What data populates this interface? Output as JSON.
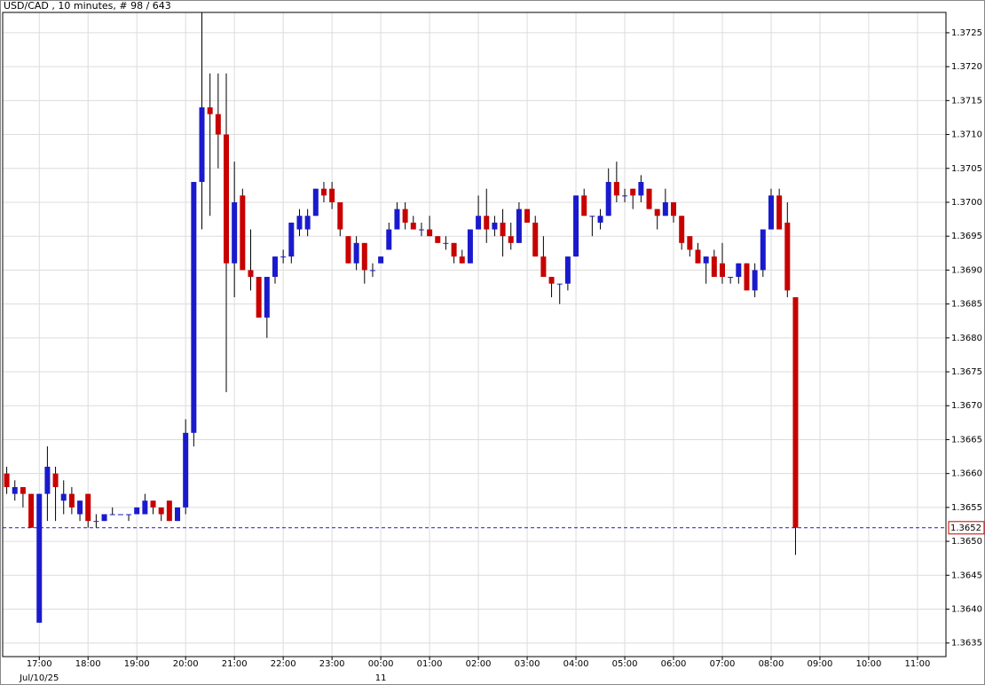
{
  "chart_data": {
    "type": "candlestick",
    "title": "USD/CAD , 10 minutes, # 98 / 643",
    "x": [
      "2025-07-10T16:20",
      "2025-07-10T16:30",
      "2025-07-10T16:40",
      "2025-07-10T16:50",
      "2025-07-10T17:00",
      "2025-07-10T17:10",
      "2025-07-10T17:20",
      "2025-07-10T17:30",
      "2025-07-10T17:40",
      "2025-07-10T17:50",
      "2025-07-10T18:00",
      "2025-07-10T18:10",
      "2025-07-10T18:20",
      "2025-07-10T18:30",
      "2025-07-10T18:40",
      "2025-07-10T18:50",
      "2025-07-10T19:00",
      "2025-07-10T19:10",
      "2025-07-10T19:20",
      "2025-07-10T19:30",
      "2025-07-10T19:40",
      "2025-07-10T19:50",
      "2025-07-10T20:00",
      "2025-07-10T20:10",
      "2025-07-10T20:20",
      "2025-07-10T20:30",
      "2025-07-10T20:40",
      "2025-07-10T20:50",
      "2025-07-10T21:00",
      "2025-07-10T21:10",
      "2025-07-10T21:20",
      "2025-07-10T21:30",
      "2025-07-10T21:40",
      "2025-07-10T21:50",
      "2025-07-10T22:00",
      "2025-07-10T22:10",
      "2025-07-10T22:20",
      "2025-07-10T22:30",
      "2025-07-10T22:40",
      "2025-07-10T22:50",
      "2025-07-10T23:00",
      "2025-07-10T23:10",
      "2025-07-10T23:20",
      "2025-07-10T23:30",
      "2025-07-10T23:40",
      "2025-07-10T23:50",
      "2025-07-11T00:00",
      "2025-07-11T00:10",
      "2025-07-11T00:20",
      "2025-07-11T00:30",
      "2025-07-11T00:40",
      "2025-07-11T00:50",
      "2025-07-11T01:00",
      "2025-07-11T01:10",
      "2025-07-11T01:20",
      "2025-07-11T01:30",
      "2025-07-11T01:40",
      "2025-07-11T01:50",
      "2025-07-11T02:00",
      "2025-07-11T02:10",
      "2025-07-11T02:20",
      "2025-07-11T02:30",
      "2025-07-11T02:40",
      "2025-07-11T02:50",
      "2025-07-11T03:00",
      "2025-07-11T03:10",
      "2025-07-11T03:20",
      "2025-07-11T03:30",
      "2025-07-11T03:40",
      "2025-07-11T03:50",
      "2025-07-11T04:00",
      "2025-07-11T04:10",
      "2025-07-11T04:20",
      "2025-07-11T04:30",
      "2025-07-11T04:40",
      "2025-07-11T04:50",
      "2025-07-11T05:00",
      "2025-07-11T05:10",
      "2025-07-11T05:20",
      "2025-07-11T05:30",
      "2025-07-11T05:40",
      "2025-07-11T05:50",
      "2025-07-11T06:00",
      "2025-07-11T06:10",
      "2025-07-11T06:20",
      "2025-07-11T06:30",
      "2025-07-11T06:40",
      "2025-07-11T06:50",
      "2025-07-11T07:00",
      "2025-07-11T07:10",
      "2025-07-11T07:20",
      "2025-07-11T07:30",
      "2025-07-11T07:40",
      "2025-07-11T07:50",
      "2025-07-11T08:00",
      "2025-07-11T08:10",
      "2025-07-11T08:20",
      "2025-07-11T08:30"
    ],
    "open": [
      1.366,
      1.3657,
      1.3658,
      1.3657,
      1.3638,
      1.3657,
      1.366,
      1.3656,
      1.3657,
      1.3654,
      1.3657,
      1.3653,
      1.3653,
      1.3654,
      1.3654,
      1.3654,
      1.3654,
      1.3654,
      1.3656,
      1.3655,
      1.3656,
      1.3653,
      1.3655,
      1.3666,
      1.3703,
      1.3714,
      1.3713,
      1.371,
      1.3691,
      1.3701,
      1.369,
      1.3689,
      1.3683,
      1.3689,
      1.3692,
      1.3692,
      1.3696,
      1.3696,
      1.3698,
      1.3702,
      1.3702,
      1.37,
      1.3695,
      1.3691,
      1.3694,
      1.369,
      1.3691,
      1.3693,
      1.3696,
      1.3699,
      1.3697,
      1.3696,
      1.3696,
      1.3695,
      1.3694,
      1.3694,
      1.3692,
      1.3691,
      1.3696,
      1.3698,
      1.3696,
      1.3697,
      1.3695,
      1.3694,
      1.3699,
      1.3697,
      1.3692,
      1.3689,
      1.3688,
      1.3688,
      1.3692,
      1.3701,
      1.3698,
      1.3697,
      1.3698,
      1.3703,
      1.3701,
      1.3702,
      1.3701,
      1.3702,
      1.3699,
      1.3698,
      1.37,
      1.3698,
      1.3695,
      1.3693,
      1.3691,
      1.3692,
      1.3691,
      1.3689,
      1.3689,
      1.3691,
      1.3687,
      1.369,
      1.3696,
      1.3701,
      1.3697,
      1.3686
    ],
    "high": [
      1.3661,
      1.3659,
      1.3658,
      1.3657,
      1.3657,
      1.3664,
      1.3661,
      1.3659,
      1.3658,
      1.3656,
      1.3657,
      1.3654,
      1.3654,
      1.3655,
      1.3654,
      1.3654,
      1.3655,
      1.3657,
      1.3656,
      1.3655,
      1.3656,
      1.3655,
      1.3668,
      1.3703,
      1.3728,
      1.3719,
      1.3719,
      1.3719,
      1.3706,
      1.3702,
      1.3696,
      1.3689,
      1.3689,
      1.3692,
      1.3693,
      1.3697,
      1.3699,
      1.3699,
      1.3702,
      1.3703,
      1.3703,
      1.37,
      1.3695,
      1.3695,
      1.3694,
      1.3691,
      1.3692,
      1.3697,
      1.37,
      1.37,
      1.3698,
      1.3697,
      1.3698,
      1.3695,
      1.3695,
      1.3694,
      1.3693,
      1.3696,
      1.3701,
      1.3702,
      1.3698,
      1.3699,
      1.3697,
      1.37,
      1.3699,
      1.3698,
      1.3695,
      1.3689,
      1.3688,
      1.3692,
      1.3701,
      1.3702,
      1.3698,
      1.3699,
      1.3705,
      1.3706,
      1.3702,
      1.3702,
      1.3704,
      1.3702,
      1.3699,
      1.3702,
      1.37,
      1.3698,
      1.3695,
      1.3694,
      1.3692,
      1.3693,
      1.3694,
      1.3689,
      1.3691,
      1.3691,
      1.3691,
      1.3696,
      1.3702,
      1.3702,
      1.37,
      1.3686
    ],
    "low": [
      1.3657,
      1.3656,
      1.3655,
      1.3652,
      1.3638,
      1.3653,
      1.3653,
      1.3654,
      1.3654,
      1.3653,
      1.3652,
      1.3652,
      1.3653,
      1.3654,
      1.3654,
      1.3653,
      1.3654,
      1.3654,
      1.3654,
      1.3653,
      1.3653,
      1.3653,
      1.3654,
      1.3664,
      1.3696,
      1.3698,
      1.3705,
      1.3672,
      1.3686,
      1.369,
      1.3687,
      1.3683,
      1.368,
      1.3688,
      1.3691,
      1.3691,
      1.3695,
      1.3695,
      1.3698,
      1.37,
      1.3699,
      1.3695,
      1.3691,
      1.369,
      1.3688,
      1.3689,
      1.3691,
      1.3693,
      1.3696,
      1.3696,
      1.3696,
      1.3695,
      1.3695,
      1.3694,
      1.3693,
      1.3691,
      1.3691,
      1.3691,
      1.3696,
      1.3694,
      1.3695,
      1.3692,
      1.3693,
      1.3694,
      1.3697,
      1.3692,
      1.3689,
      1.3686,
      1.3685,
      1.3687,
      1.3692,
      1.3698,
      1.3695,
      1.3696,
      1.3698,
      1.37,
      1.37,
      1.3699,
      1.37,
      1.3699,
      1.3696,
      1.3698,
      1.3697,
      1.3693,
      1.3692,
      1.3691,
      1.3688,
      1.3689,
      1.3688,
      1.3688,
      1.3688,
      1.3687,
      1.3686,
      1.3689,
      1.3696,
      1.3696,
      1.3686,
      1.3648
    ],
    "close": [
      1.3658,
      1.3658,
      1.3657,
      1.3652,
      1.3657,
      1.3661,
      1.3658,
      1.3657,
      1.3655,
      1.3656,
      1.3653,
      1.3653,
      1.3654,
      1.3654,
      1.3654,
      1.3654,
      1.3655,
      1.3656,
      1.3655,
      1.3654,
      1.3653,
      1.3655,
      1.3666,
      1.3703,
      1.3714,
      1.3713,
      1.371,
      1.3691,
      1.37,
      1.369,
      1.3689,
      1.3683,
      1.3689,
      1.3692,
      1.3692,
      1.3697,
      1.3698,
      1.3698,
      1.3702,
      1.3701,
      1.37,
      1.3696,
      1.3691,
      1.3694,
      1.369,
      1.369,
      1.3692,
      1.3696,
      1.3699,
      1.3697,
      1.3696,
      1.3696,
      1.3695,
      1.3694,
      1.3694,
      1.3692,
      1.3691,
      1.3696,
      1.3698,
      1.3696,
      1.3697,
      1.3695,
      1.3694,
      1.3699,
      1.3697,
      1.3692,
      1.3689,
      1.3688,
      1.3688,
      1.3692,
      1.3701,
      1.3698,
      1.3698,
      1.3698,
      1.3703,
      1.3701,
      1.3701,
      1.3701,
      1.3703,
      1.3699,
      1.3698,
      1.37,
      1.3698,
      1.3694,
      1.3693,
      1.3691,
      1.3692,
      1.3689,
      1.3689,
      1.3689,
      1.3691,
      1.3687,
      1.369,
      1.3696,
      1.3701,
      1.3696,
      1.3687,
      1.3652
    ],
    "up_color": "#1a1acd",
    "down_color": "#c80000",
    "xlim": [
      "2025-07-10T16:15",
      "2025-07-11T11:35"
    ],
    "xticks": [
      {
        "value": "2025-07-10T17:00",
        "label": "17:00"
      },
      {
        "value": "2025-07-10T18:00",
        "label": "18:00"
      },
      {
        "value": "2025-07-10T19:00",
        "label": "19:00"
      },
      {
        "value": "2025-07-10T20:00",
        "label": "20:00"
      },
      {
        "value": "2025-07-10T21:00",
        "label": "21:00"
      },
      {
        "value": "2025-07-10T22:00",
        "label": "22:00"
      },
      {
        "value": "2025-07-10T23:00",
        "label": "23:00"
      },
      {
        "value": "2025-07-11T00:00",
        "label": "00:00"
      },
      {
        "value": "2025-07-11T01:00",
        "label": "01:00"
      },
      {
        "value": "2025-07-11T02:00",
        "label": "02:00"
      },
      {
        "value": "2025-07-11T03:00",
        "label": "03:00"
      },
      {
        "value": "2025-07-11T04:00",
        "label": "04:00"
      },
      {
        "value": "2025-07-11T05:00",
        "label": "05:00"
      },
      {
        "value": "2025-07-11T06:00",
        "label": "06:00"
      },
      {
        "value": "2025-07-11T07:00",
        "label": "07:00"
      },
      {
        "value": "2025-07-11T08:00",
        "label": "08:00"
      },
      {
        "value": "2025-07-11T09:00",
        "label": "09:00"
      },
      {
        "value": "2025-07-11T10:00",
        "label": "10:00"
      },
      {
        "value": "2025-07-11T11:00",
        "label": "11:00"
      }
    ],
    "date_labels": [
      {
        "value": "2025-07-10T17:00",
        "label": "Jul/10/25"
      },
      {
        "value": "2025-07-11T00:00",
        "label": "11"
      }
    ],
    "ylim": [
      1.3633,
      1.3728
    ],
    "yticks": [
      {
        "value": 1.3635,
        "label": "1.3635"
      },
      {
        "value": 1.364,
        "label": "1.3640"
      },
      {
        "value": 1.3645,
        "label": "1.3645"
      },
      {
        "value": 1.365,
        "label": "1.3650"
      },
      {
        "value": 1.3655,
        "label": "1.3655"
      },
      {
        "value": 1.366,
        "label": "1.3660"
      },
      {
        "value": 1.3665,
        "label": "1.3665"
      },
      {
        "value": 1.367,
        "label": "1.3670"
      },
      {
        "value": 1.3675,
        "label": "1.3675"
      },
      {
        "value": 1.368,
        "label": "1.3680"
      },
      {
        "value": 1.3685,
        "label": "1.3685"
      },
      {
        "value": 1.369,
        "label": "1.3690"
      },
      {
        "value": 1.3695,
        "label": "1.3695"
      },
      {
        "value": 1.37,
        "label": "1.3700"
      },
      {
        "value": 1.3705,
        "label": "1.3705"
      },
      {
        "value": 1.371,
        "label": "1.3710"
      },
      {
        "value": 1.3715,
        "label": "1.3715"
      },
      {
        "value": 1.372,
        "label": "1.3720"
      },
      {
        "value": 1.3725,
        "label": "1.3725"
      }
    ],
    "last_price": {
      "value": 1.3652,
      "label": "1.3652"
    },
    "grid": true
  }
}
